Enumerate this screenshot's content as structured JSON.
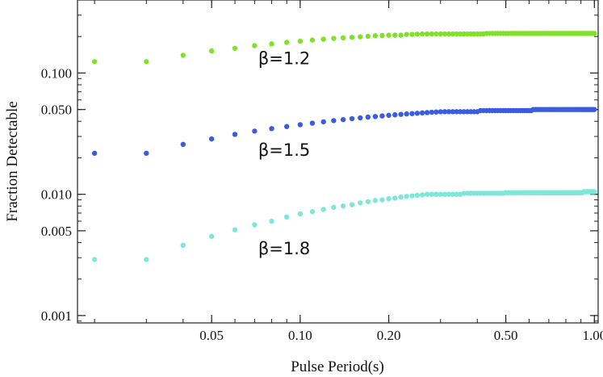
{
  "chart_data": {
    "type": "scatter",
    "title": "",
    "xlabel": "Pulse Period(s)",
    "ylabel": "Fraction Detectable",
    "xscale": "log",
    "yscale": "log",
    "xlim": [
      0.0175,
      1.03
    ],
    "ylim": [
      0.00087,
      0.4
    ],
    "x_ticks": [
      {
        "value": 0.05,
        "label": "0.05"
      },
      {
        "value": 0.1,
        "label": "0.10"
      },
      {
        "value": 0.2,
        "label": "0.20"
      },
      {
        "value": 0.5,
        "label": "0.50"
      },
      {
        "value": 1.0,
        "label": "1.00"
      }
    ],
    "y_ticks": [
      {
        "value": 0.001,
        "label": "0.001"
      },
      {
        "value": 0.005,
        "label": "0.005"
      },
      {
        "value": 0.01,
        "label": "0.010"
      },
      {
        "value": 0.05,
        "label": "0.050"
      },
      {
        "value": 0.1,
        "label": "0.100"
      }
    ],
    "series": [
      {
        "name": "β=1.2",
        "color": "#7fe228",
        "x": [
          0.02,
          0.03,
          0.04,
          0.05,
          0.06,
          0.07,
          0.08,
          0.09,
          0.1,
          0.11,
          0.12,
          0.13,
          0.14,
          0.15,
          0.16,
          0.17,
          0.18,
          0.19,
          0.2,
          0.21,
          0.22,
          0.23,
          0.24,
          0.25,
          0.26,
          0.27,
          0.28,
          0.29,
          0.3,
          0.31,
          0.32,
          0.33,
          0.34,
          0.35,
          0.36,
          0.37,
          0.38,
          0.39,
          0.4,
          0.41,
          0.42,
          0.43,
          0.44,
          0.45,
          0.46,
          0.47,
          0.48,
          0.49,
          0.5,
          0.51,
          0.52,
          0.53,
          0.54,
          0.55,
          0.56,
          0.57,
          0.58,
          0.59,
          0.6,
          0.61,
          0.62,
          0.63,
          0.64,
          0.65,
          0.66,
          0.67,
          0.68,
          0.69,
          0.7,
          0.71,
          0.72,
          0.73,
          0.74,
          0.75,
          0.76,
          0.77,
          0.78,
          0.79,
          0.8,
          0.81,
          0.82,
          0.83,
          0.84,
          0.85,
          0.86,
          0.87,
          0.88,
          0.89,
          0.9,
          0.91,
          0.92,
          0.93,
          0.94,
          0.95,
          0.96,
          0.97,
          0.98,
          0.99,
          1.0
        ],
        "y": [
          0.124,
          0.124,
          0.14,
          0.152,
          0.16,
          0.168,
          0.174,
          0.179,
          0.183,
          0.187,
          0.19,
          0.193,
          0.195,
          0.197,
          0.199,
          0.201,
          0.203,
          0.204,
          0.205,
          0.205,
          0.205,
          0.208,
          0.208,
          0.209,
          0.21,
          0.21,
          0.21,
          0.21,
          0.21,
          0.21,
          0.21,
          0.21,
          0.21,
          0.21,
          0.21,
          0.21,
          0.21,
          0.21,
          0.21,
          0.21,
          0.21,
          0.212,
          0.212,
          0.212,
          0.212,
          0.212,
          0.212,
          0.212,
          0.212,
          0.212,
          0.212,
          0.212,
          0.212,
          0.212,
          0.212,
          0.212,
          0.212,
          0.212,
          0.212,
          0.212,
          0.212,
          0.212,
          0.212,
          0.212,
          0.212,
          0.212,
          0.212,
          0.212,
          0.212,
          0.212,
          0.212,
          0.212,
          0.212,
          0.212,
          0.212,
          0.212,
          0.212,
          0.212,
          0.212,
          0.212,
          0.212,
          0.212,
          0.212,
          0.212,
          0.212,
          0.212,
          0.212,
          0.212,
          0.212,
          0.212,
          0.212,
          0.212,
          0.212,
          0.212,
          0.212,
          0.212,
          0.212,
          0.212,
          0.212
        ]
      },
      {
        "name": "β=1.5",
        "color": "#3b5ce0",
        "x": [
          0.02,
          0.03,
          0.04,
          0.05,
          0.06,
          0.07,
          0.08,
          0.09,
          0.1,
          0.11,
          0.12,
          0.13,
          0.14,
          0.15,
          0.16,
          0.17,
          0.18,
          0.19,
          0.2,
          0.21,
          0.22,
          0.23,
          0.24,
          0.25,
          0.26,
          0.27,
          0.28,
          0.29,
          0.3,
          0.31,
          0.32,
          0.33,
          0.34,
          0.35,
          0.36,
          0.37,
          0.38,
          0.39,
          0.4,
          0.41,
          0.42,
          0.43,
          0.44,
          0.45,
          0.46,
          0.47,
          0.48,
          0.49,
          0.5,
          0.51,
          0.52,
          0.53,
          0.54,
          0.55,
          0.56,
          0.57,
          0.58,
          0.59,
          0.6,
          0.61,
          0.62,
          0.63,
          0.64,
          0.65,
          0.66,
          0.67,
          0.68,
          0.69,
          0.7,
          0.71,
          0.72,
          0.73,
          0.74,
          0.75,
          0.76,
          0.77,
          0.78,
          0.79,
          0.8,
          0.81,
          0.82,
          0.83,
          0.84,
          0.85,
          0.86,
          0.87,
          0.88,
          0.89,
          0.9,
          0.91,
          0.92,
          0.93,
          0.94,
          0.95,
          0.96,
          0.97,
          0.98,
          0.99,
          1.0
        ],
        "y": [
          0.0218,
          0.0218,
          0.0258,
          0.0286,
          0.0312,
          0.0332,
          0.0348,
          0.0362,
          0.0375,
          0.0386,
          0.0396,
          0.0405,
          0.0413,
          0.042,
          0.0427,
          0.0433,
          0.0438,
          0.0443,
          0.0448,
          0.0452,
          0.0456,
          0.046,
          0.0463,
          0.0466,
          0.0469,
          0.0472,
          0.0475,
          0.0477,
          0.0479,
          0.048,
          0.048,
          0.048,
          0.048,
          0.048,
          0.048,
          0.048,
          0.048,
          0.048,
          0.048,
          0.049,
          0.049,
          0.049,
          0.049,
          0.049,
          0.049,
          0.049,
          0.049,
          0.049,
          0.049,
          0.049,
          0.049,
          0.049,
          0.049,
          0.049,
          0.049,
          0.049,
          0.049,
          0.049,
          0.049,
          0.049,
          0.05,
          0.05,
          0.05,
          0.05,
          0.05,
          0.05,
          0.05,
          0.05,
          0.05,
          0.05,
          0.05,
          0.05,
          0.05,
          0.05,
          0.05,
          0.05,
          0.05,
          0.05,
          0.05,
          0.05,
          0.05,
          0.05,
          0.05,
          0.05,
          0.05,
          0.05,
          0.05,
          0.05,
          0.05,
          0.05,
          0.05,
          0.05,
          0.05,
          0.05,
          0.05,
          0.05,
          0.05,
          0.05,
          0.05
        ]
      },
      {
        "name": "β=1.8",
        "color": "#7ee8d8",
        "x": [
          0.02,
          0.03,
          0.04,
          0.05,
          0.06,
          0.07,
          0.08,
          0.09,
          0.1,
          0.11,
          0.12,
          0.13,
          0.14,
          0.15,
          0.16,
          0.17,
          0.18,
          0.19,
          0.2,
          0.21,
          0.22,
          0.23,
          0.24,
          0.25,
          0.26,
          0.27,
          0.28,
          0.29,
          0.3,
          0.31,
          0.32,
          0.33,
          0.34,
          0.35,
          0.36,
          0.37,
          0.38,
          0.39,
          0.4,
          0.41,
          0.42,
          0.43,
          0.44,
          0.45,
          0.46,
          0.47,
          0.48,
          0.49,
          0.5,
          0.51,
          0.52,
          0.53,
          0.54,
          0.55,
          0.56,
          0.57,
          0.58,
          0.59,
          0.6,
          0.61,
          0.62,
          0.63,
          0.64,
          0.65,
          0.66,
          0.67,
          0.68,
          0.69,
          0.7,
          0.71,
          0.72,
          0.73,
          0.74,
          0.75,
          0.76,
          0.77,
          0.78,
          0.79,
          0.8,
          0.81,
          0.82,
          0.83,
          0.84,
          0.85,
          0.86,
          0.87,
          0.88,
          0.89,
          0.9,
          0.91,
          0.92,
          0.93,
          0.94,
          0.95,
          0.96,
          0.97,
          0.98,
          0.99,
          1.0
        ],
        "y": [
          0.0029,
          0.0029,
          0.0038,
          0.0045,
          0.0051,
          0.0056,
          0.006,
          0.0065,
          0.0069,
          0.0072,
          0.0075,
          0.0078,
          0.008,
          0.0082,
          0.0085,
          0.0087,
          0.0089,
          0.009,
          0.0092,
          0.0093,
          0.0095,
          0.0096,
          0.0097,
          0.0098,
          0.0099,
          0.01,
          0.01,
          0.01,
          0.01,
          0.01,
          0.01,
          0.01,
          0.01,
          0.01,
          0.0102,
          0.0102,
          0.0102,
          0.0102,
          0.0102,
          0.0102,
          0.0102,
          0.0102,
          0.0102,
          0.0102,
          0.0102,
          0.0102,
          0.0102,
          0.0102,
          0.0103,
          0.0103,
          0.0103,
          0.0103,
          0.0103,
          0.0103,
          0.0103,
          0.0103,
          0.0103,
          0.0103,
          0.0103,
          0.0103,
          0.0103,
          0.0103,
          0.0103,
          0.0103,
          0.0103,
          0.0103,
          0.0103,
          0.0103,
          0.0103,
          0.0103,
          0.0103,
          0.0103,
          0.0103,
          0.0103,
          0.0103,
          0.0103,
          0.0103,
          0.0103,
          0.0103,
          0.0103,
          0.0103,
          0.0103,
          0.0103,
          0.0103,
          0.0103,
          0.0103,
          0.0103,
          0.0103,
          0.0103,
          0.0103,
          0.0105,
          0.0105,
          0.0105,
          0.0105,
          0.0105,
          0.0105,
          0.0105,
          0.0105,
          0.0105
        ]
      }
    ],
    "annotations": [
      {
        "text": "β=1.2",
        "x": 0.072,
        "y": 0.118
      },
      {
        "text": "β=1.5",
        "x": 0.072,
        "y": 0.0208
      },
      {
        "text": "β=1.8",
        "x": 0.072,
        "y": 0.0032
      }
    ],
    "legend": "none",
    "grid": false
  }
}
